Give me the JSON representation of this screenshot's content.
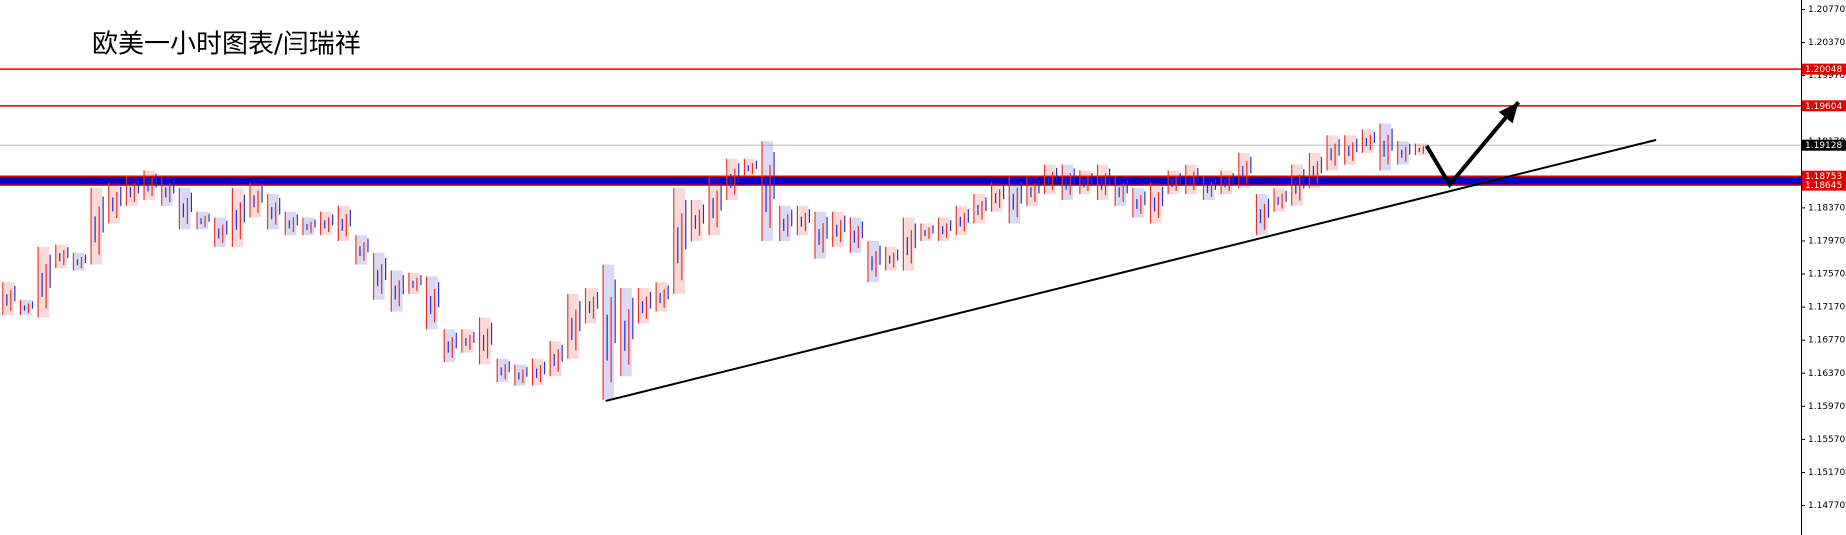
{
  "chart_data": {
    "type": "ohlc",
    "title": "欧美一小时图表/闫瑞祥",
    "xlim": [
      -0.5,
      101.5
    ],
    "ylim": [
      1.14414,
      1.20884
    ],
    "yticks": [
      {
        "value": 1.1477,
        "label": "1.14770"
      },
      {
        "value": 1.1517,
        "label": "1.15170"
      },
      {
        "value": 1.1557,
        "label": "1.15570"
      },
      {
        "value": 1.1597,
        "label": "1.15970"
      },
      {
        "value": 1.1637,
        "label": "1.16370"
      },
      {
        "value": 1.1677,
        "label": "1.16770"
      },
      {
        "value": 1.1717,
        "label": "1.17170"
      },
      {
        "value": 1.1757,
        "label": "1.17570"
      },
      {
        "value": 1.1797,
        "label": "1.17970"
      },
      {
        "value": 1.1837,
        "label": "1.18370"
      },
      {
        "value": 1.1877,
        "label": "1.18770"
      },
      {
        "value": 1.1917,
        "label": "1.19170"
      },
      {
        "value": 1.1957,
        "label": "1.19570"
      },
      {
        "value": 1.1997,
        "label": "1.19970"
      },
      {
        "value": 1.2037,
        "label": "1.20370"
      },
      {
        "value": 1.2077,
        "label": "1.20770"
      }
    ],
    "up_color": "#e0302a",
    "down_color": "#2b2bc8",
    "high": [
      1.17471,
      1.17258,
      1.17898,
      1.17926,
      1.17827,
      1.18609,
      1.1868,
      1.18751,
      1.18822,
      1.18751,
      1.18609,
      1.18324,
      1.18253,
      1.18609,
      1.1868,
      1.18537,
      1.18324,
      1.18253,
      1.18324,
      1.18395,
      1.1804,
      1.17827,
      1.17613,
      1.17585,
      1.17542,
      1.16902,
      1.16902,
      1.17044,
      1.16547,
      1.16476,
      1.16547,
      1.1676,
      1.17329,
      1.174,
      1.17684,
      1.174,
      1.174,
      1.17471,
      1.18609,
      1.18466,
      1.18751,
      1.18964,
      1.18964,
      1.19177,
      1.18395,
      1.18395,
      1.18324,
      1.18324,
      1.18253,
      1.17969,
      1.17898,
      1.18253,
      1.18182,
      1.18253,
      1.18395,
      1.18537,
      1.1868,
      1.18751,
      1.18751,
      1.18893,
      1.18893,
      1.18822,
      1.18893,
      1.18751,
      1.18609,
      1.1868,
      1.18822,
      1.18893,
      1.18751,
      1.18822,
      1.19035,
      1.18537,
      1.18609,
      1.18893,
      1.19035,
      1.19248,
      1.19248,
      1.1932,
      1.19391,
      1.19177,
      1.19149
    ],
    "low": [
      1.17073,
      1.17073,
      1.17044,
      1.17642,
      1.17613,
      1.17684,
      1.18182,
      1.18395,
      1.18466,
      1.18395,
      1.18111,
      1.18111,
      1.17898,
      1.17898,
      1.18253,
      1.18111,
      1.1804,
      1.1804,
      1.1804,
      1.17969,
      1.17684,
      1.17258,
      1.17116,
      1.17329,
      1.16902,
      1.16504,
      1.16618,
      1.16476,
      1.16262,
      1.1622,
      1.1622,
      1.16333,
      1.16547,
      1.16973,
      1.16049,
      1.16333,
      1.16973,
      1.17116,
      1.17329,
      1.17969,
      1.1804,
      1.18466,
      1.18751,
      1.17969,
      1.17969,
      1.1804,
      1.17755,
      1.17898,
      1.17827,
      1.17471,
      1.17613,
      1.17613,
      1.17969,
      1.17969,
      1.1804,
      1.18182,
      1.18324,
      1.18182,
      1.18395,
      1.18537,
      1.18466,
      1.18537,
      1.18466,
      1.18395,
      1.18253,
      1.18182,
      1.18537,
      1.18537,
      1.18466,
      1.18537,
      1.18609,
      1.1804,
      1.18324,
      1.18395,
      1.18609,
      1.18822,
      1.18893,
      1.19035,
      1.18822,
      1.18893,
      1.19007
    ],
    "levels": [
      {
        "value": 1.20048,
        "color": "#e00000"
      },
      {
        "value": 1.19604,
        "color": "#e00000"
      },
      {
        "value": 1.19128,
        "color": "#000000"
      }
    ],
    "zone": {
      "from": 1.18645,
      "to": 1.18753,
      "color": "#0000cc",
      "edge_color": "#e00000"
    },
    "trendline": {
      "x": [
        33.8,
        93.3
      ],
      "y": [
        1.16035,
        1.19192
      ]
    },
    "arrow": {
      "x": [
        80.3,
        81.6,
        85.5
      ],
      "y": [
        1.1912,
        1.18651,
        1.19647
      ]
    }
  }
}
